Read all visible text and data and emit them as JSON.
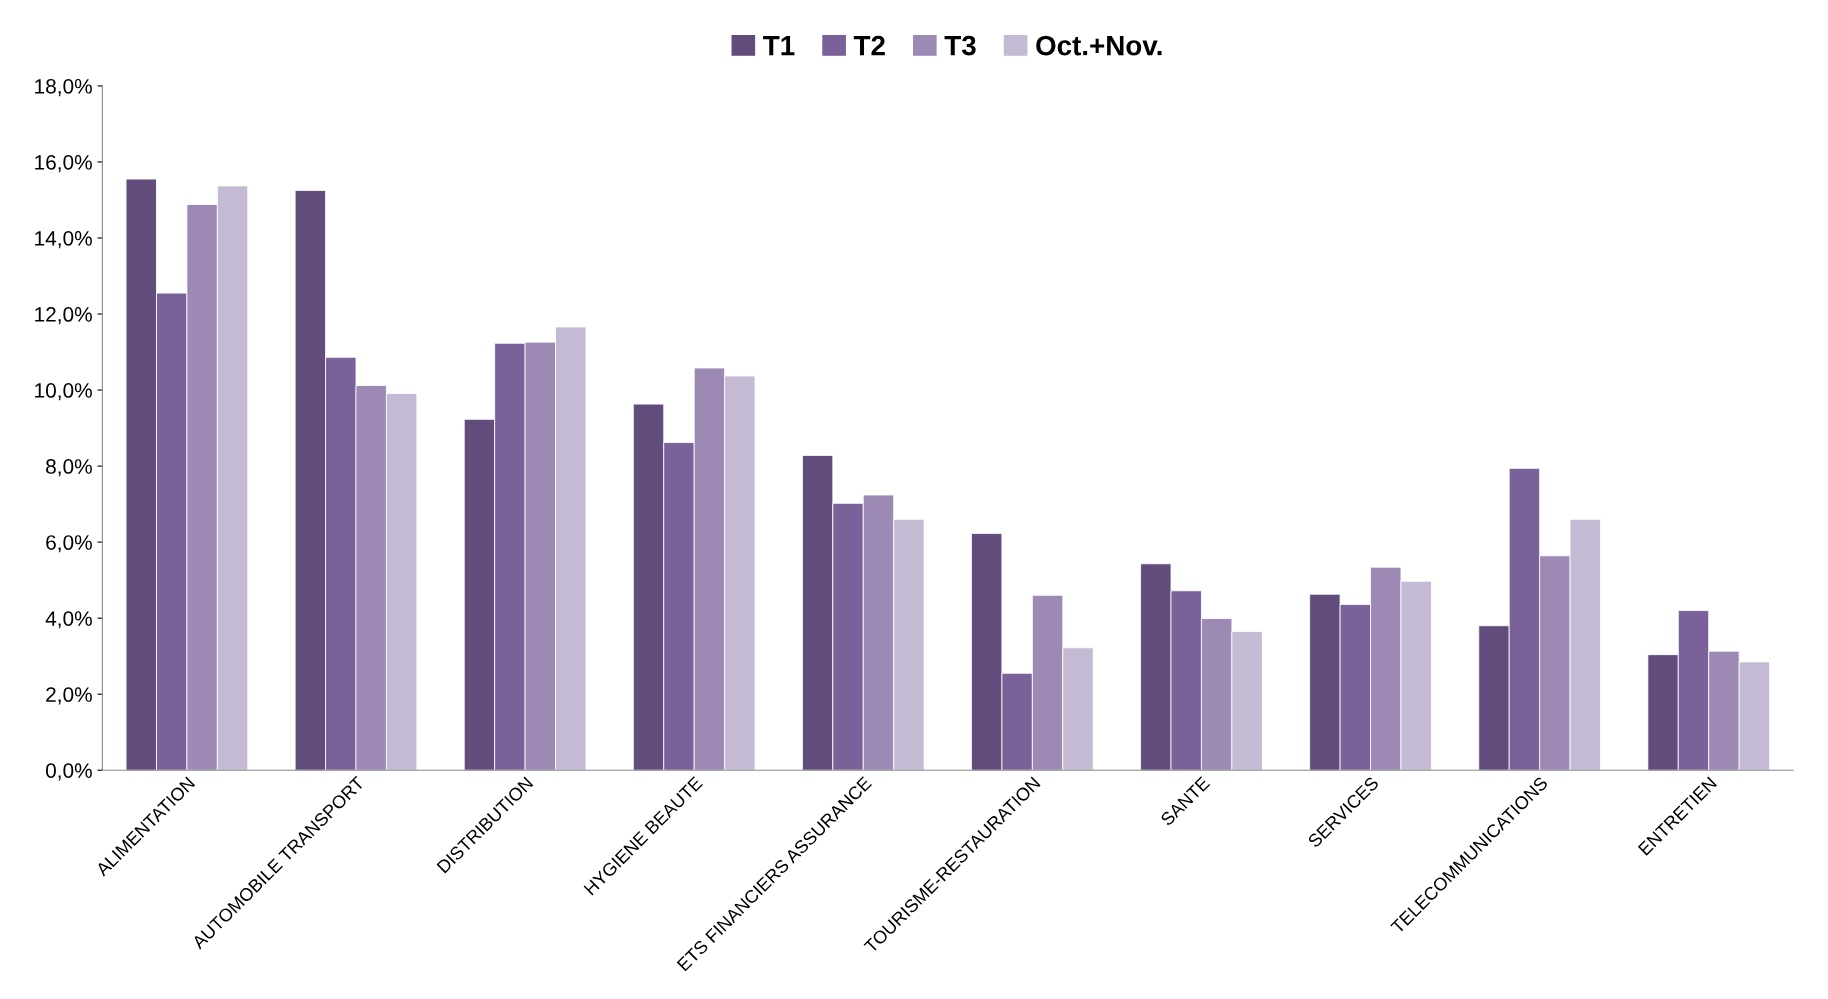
{
  "chart_data": {
    "type": "bar",
    "categories": [
      "ALIMENTATION",
      "AUTOMOBILE TRANSPORT",
      "DISTRIBUTION",
      "HYGIENE BEAUTE",
      "ETS FINANCIERS ASSURANCE",
      "TOURISME-RESTAURATION",
      "SANTE",
      "SERVICES",
      "TELECOMMUNICATIONS",
      "ENTRETIEN"
    ],
    "series": [
      {
        "name": "T1",
        "color": "#614c7c",
        "values": [
          15.55,
          15.25,
          9.23,
          9.63,
          8.28,
          6.23,
          5.43,
          4.63,
          3.8,
          3.04
        ]
      },
      {
        "name": "T2",
        "color": "#7a619a",
        "values": [
          12.55,
          10.86,
          11.23,
          8.62,
          7.02,
          2.55,
          4.72,
          4.36,
          7.94,
          4.2
        ]
      },
      {
        "name": "T3",
        "color": "#9c8ab5",
        "values": [
          14.88,
          10.12,
          11.26,
          10.58,
          7.24,
          4.6,
          3.99,
          5.34,
          5.64,
          3.13
        ]
      },
      {
        "name": "Oct.+Nov.",
        "color": "#c4bad3",
        "values": [
          15.37,
          9.91,
          11.66,
          10.37,
          6.6,
          3.22,
          3.65,
          4.97,
          6.6,
          2.85
        ]
      }
    ],
    "ylim": [
      0,
      18
    ],
    "yticks": [
      {
        "value": 0,
        "label": "0,0%"
      },
      {
        "value": 2,
        "label": "2,0%"
      },
      {
        "value": 4,
        "label": "4,0%"
      },
      {
        "value": 6,
        "label": "6,0%"
      },
      {
        "value": 8,
        "label": "8,0%"
      },
      {
        "value": 10,
        "label": "10,0%"
      },
      {
        "value": 12,
        "label": "12,0%"
      },
      {
        "value": 14,
        "label": "14,0%"
      },
      {
        "value": 16,
        "label": "16,0%"
      },
      {
        "value": 18,
        "label": "18,0%"
      }
    ],
    "grid": false,
    "legend": "top"
  }
}
